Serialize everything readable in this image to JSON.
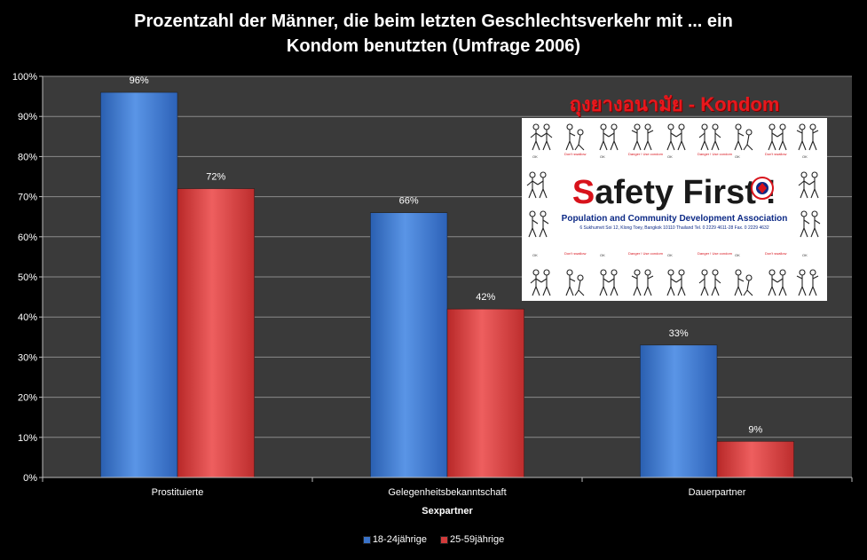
{
  "chart_data": {
    "type": "bar",
    "title": "Prozentzahl der Männer, die beim letzten Geschlechtsverkehr mit ... ein Kondom benutzten (Umfrage 2006)",
    "title_lines": [
      "Prozentzahl der Männer, die beim letzten Geschlechtsverkehr mit ... ein",
      "Kondom benutzten (Umfrage 2006)"
    ],
    "categories": [
      "Prostituierte",
      "Gelegenheitsbekanntschaft",
      "Dauerpartner"
    ],
    "series": [
      {
        "name": "18-24jährige",
        "values": [
          96,
          66,
          33
        ],
        "labels": [
          "96%",
          "66%",
          "33%"
        ],
        "color": "#3a73c9"
      },
      {
        "name": "25-59jährige",
        "values": [
          72,
          42,
          9
        ],
        "labels": [
          "72%",
          "42%",
          "9%"
        ],
        "color": "#d23b3b"
      }
    ],
    "xlabel": "Sexpartner",
    "ylabel": "",
    "ylim": [
      0,
      100
    ],
    "yticks": [
      0,
      10,
      20,
      30,
      40,
      50,
      60,
      70,
      80,
      90,
      100
    ],
    "ytick_labels": [
      "0%",
      "10%",
      "20%",
      "30%",
      "40%",
      "50%",
      "60%",
      "70%",
      "80%",
      "90%",
      "100%"
    ],
    "grid": true,
    "legend_position": "bottom",
    "plot_background": "#3a3a3a",
    "grid_color": "#8a8a8a"
  },
  "inset": {
    "title": "ถุงยางอนามัย - Kondom",
    "banner_title_first": "S",
    "banner_title_rest": "afety First !",
    "organization": "Population and Community Development Association",
    "address": "6 Sukhumvit Soi 12, Klong Toey, Bangkok 10110 Thailand  Tel. 0 2229 4611-28 Fax. 0 2229 4632",
    "captions_top": [
      "OK",
      "Don't swallow",
      "OK",
      "Danger ! Use condom",
      "OK",
      "Danger ! Use condom",
      "OK",
      "Don't swallow",
      "OK"
    ],
    "captions_bottom": [
      "OK",
      "Don't swallow",
      "OK",
      "Danger ! Use condom",
      "OK",
      "Danger ! Use condom",
      "OK",
      "Don't swallow",
      "OK"
    ]
  }
}
